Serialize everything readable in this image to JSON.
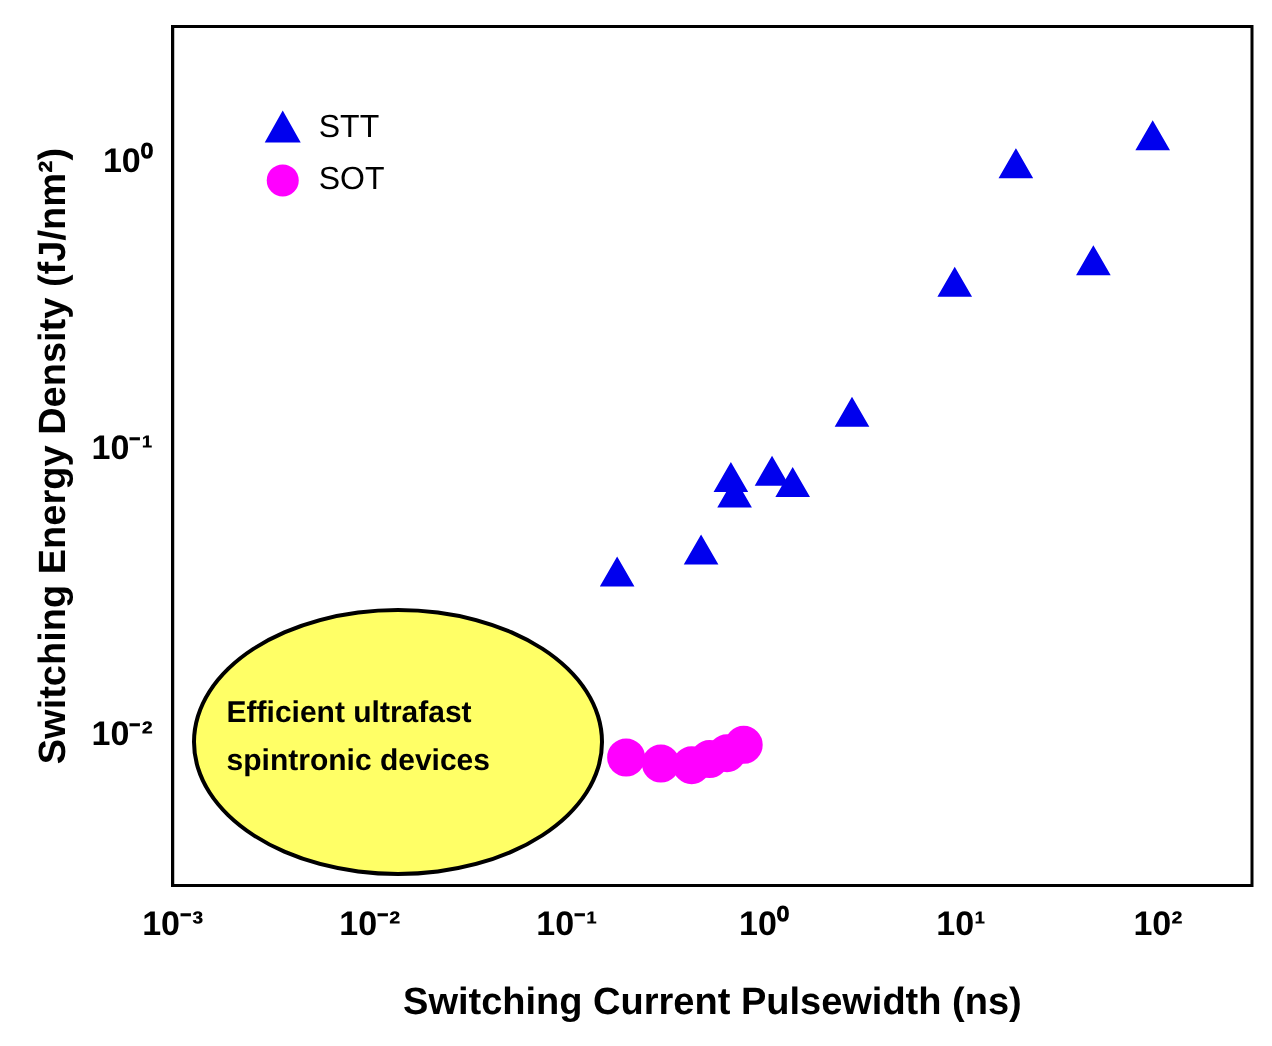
{
  "chart_data": {
    "type": "scatter",
    "xlabel": "Switching Current Pulsewidth (ns)",
    "ylabel": "Switching Energy Density (fJ/nm²)",
    "log": "xy",
    "xlim": [
      0.001,
      300
    ],
    "ylim": [
      0.003,
      3
    ],
    "xticks": [
      {
        "value": 0.001,
        "label": "10⁻³"
      },
      {
        "value": 0.01,
        "label": "10⁻²"
      },
      {
        "value": 0.1,
        "label": "10⁻¹"
      },
      {
        "value": 1,
        "label": "10⁰"
      },
      {
        "value": 10,
        "label": "10¹"
      },
      {
        "value": 100,
        "label": "10²"
      }
    ],
    "yticks": [
      {
        "value": 0.01,
        "label": "10⁻²"
      },
      {
        "value": 0.1,
        "label": "10⁻¹"
      },
      {
        "value": 1,
        "label": "10⁰"
      }
    ],
    "grid": false,
    "legend": "top left",
    "annotations": [
      "Efficient ultrafast spintronic devices"
    ],
    "series": [
      {
        "name": "STT",
        "color": "#0000ee",
        "marker": "triangle",
        "x": [
          0.18,
          0.48,
          0.68,
          0.71,
          1.1,
          1.4,
          2.8,
          9.3,
          19,
          47,
          94
        ],
        "values": [
          0.036,
          0.043,
          0.077,
          0.068,
          0.081,
          0.074,
          0.13,
          0.37,
          0.96,
          0.44,
          1.2
        ]
      },
      {
        "name": "SOT",
        "color": "#ff00ff",
        "marker": "circle",
        "x": [
          0.2,
          0.3,
          0.43,
          0.53,
          0.65,
          0.79
        ],
        "values": [
          0.0084,
          0.008,
          0.0079,
          0.0083,
          0.0087,
          0.0093
        ]
      }
    ]
  }
}
